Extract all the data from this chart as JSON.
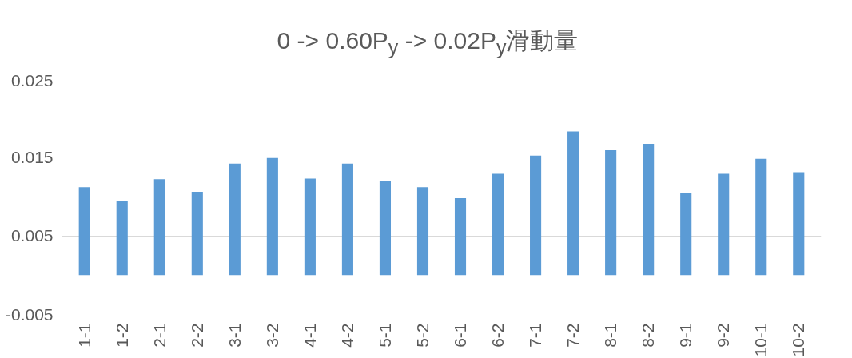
{
  "chart_data": {
    "type": "bar",
    "title": "0 -> 0.60P$_{y}$ -> 0.02P$_{y}$滑動量",
    "categories": [
      "1-1",
      "1-2",
      "2-1",
      "2-2",
      "3-1",
      "3-2",
      "4-1",
      "4-2",
      "5-1",
      "5-2",
      "6-1",
      "6-2",
      "7-1",
      "7-2",
      "8-1",
      "8-2",
      "9-1",
      "9-2",
      "10-1",
      "10-2"
    ],
    "values": [
      0.0112,
      0.0094,
      0.0122,
      0.0106,
      0.0142,
      0.0149,
      0.0123,
      0.0142,
      0.012,
      0.0112,
      0.0098,
      0.0129,
      0.0152,
      0.0183,
      0.0159,
      0.0167,
      0.0104,
      0.0129,
      0.0148,
      0.0131
    ],
    "color": "#5b9bd5",
    "ylim": [
      -0.005,
      0.025
    ],
    "yticks": [
      -0.005,
      0.005,
      0.015,
      0.025
    ],
    "grid": "y"
  }
}
